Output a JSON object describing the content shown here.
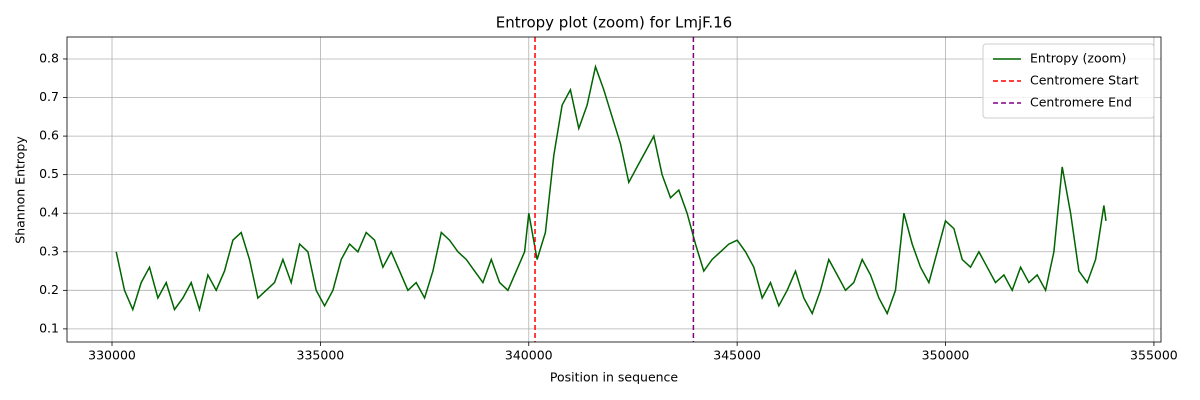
{
  "chart_data": {
    "type": "line",
    "title": "Entropy plot (zoom) for LmjF.16",
    "x_label": "Position in sequence",
    "y_label": "Shannon Entropy",
    "xlim": [
      328920,
      355170
    ],
    "ylim": [
      0.066,
      0.857
    ],
    "xticks": [
      330000,
      335000,
      340000,
      345000,
      350000,
      355000
    ],
    "yticks": [
      0.1,
      0.2,
      0.3,
      0.4,
      0.5,
      0.6,
      0.7,
      0.8
    ],
    "grid": true,
    "legend_loc": "upper right",
    "x": [
      330100,
      330300,
      330500,
      330700,
      330900,
      331100,
      331300,
      331500,
      331700,
      331900,
      332100,
      332300,
      332500,
      332700,
      332900,
      333100,
      333300,
      333500,
      333700,
      333900,
      334100,
      334300,
      334500,
      334700,
      334900,
      335100,
      335300,
      335500,
      335700,
      335900,
      336100,
      336300,
      336500,
      336700,
      336900,
      337100,
      337300,
      337500,
      337700,
      337900,
      338100,
      338300,
      338500,
      338700,
      338900,
      339100,
      339300,
      339500,
      339700,
      339900,
      340000,
      340200,
      340400,
      340600,
      340800,
      341000,
      341200,
      341400,
      341600,
      341800,
      342000,
      342200,
      342400,
      342600,
      342800,
      343000,
      343200,
      343400,
      343600,
      343800,
      344000,
      344200,
      344400,
      344600,
      344800,
      345000,
      345200,
      345400,
      345600,
      345800,
      346000,
      346200,
      346400,
      346600,
      346800,
      347000,
      347200,
      347400,
      347600,
      347800,
      348000,
      348200,
      348400,
      348600,
      348800,
      349000,
      349200,
      349400,
      349600,
      349800,
      350000,
      350200,
      350400,
      350600,
      350800,
      351000,
      351200,
      351400,
      351600,
      351800,
      352000,
      352200,
      352400,
      352600,
      352800,
      353000,
      353200,
      353400,
      353600,
      353800,
      353850
    ],
    "series": [
      {
        "name": "Entropy (zoom)",
        "color": "#006400",
        "values": [
          0.3,
          0.2,
          0.15,
          0.22,
          0.26,
          0.18,
          0.22,
          0.15,
          0.18,
          0.22,
          0.15,
          0.24,
          0.2,
          0.25,
          0.33,
          0.35,
          0.28,
          0.18,
          0.2,
          0.22,
          0.28,
          0.22,
          0.32,
          0.3,
          0.2,
          0.16,
          0.2,
          0.28,
          0.32,
          0.3,
          0.35,
          0.33,
          0.26,
          0.3,
          0.25,
          0.2,
          0.22,
          0.18,
          0.25,
          0.35,
          0.33,
          0.3,
          0.28,
          0.25,
          0.22,
          0.28,
          0.22,
          0.2,
          0.25,
          0.3,
          0.4,
          0.28,
          0.35,
          0.55,
          0.68,
          0.72,
          0.62,
          0.68,
          0.78,
          0.72,
          0.65,
          0.58,
          0.48,
          0.52,
          0.56,
          0.6,
          0.5,
          0.44,
          0.46,
          0.4,
          0.32,
          0.25,
          0.28,
          0.3,
          0.32,
          0.33,
          0.3,
          0.26,
          0.18,
          0.22,
          0.16,
          0.2,
          0.25,
          0.18,
          0.14,
          0.2,
          0.28,
          0.24,
          0.2,
          0.22,
          0.28,
          0.24,
          0.18,
          0.14,
          0.2,
          0.4,
          0.32,
          0.26,
          0.22,
          0.3,
          0.38,
          0.36,
          0.28,
          0.26,
          0.3,
          0.26,
          0.22,
          0.24,
          0.2,
          0.26,
          0.22,
          0.24,
          0.2,
          0.3,
          0.52,
          0.4,
          0.25,
          0.22,
          0.28,
          0.42,
          0.38
        ]
      }
    ],
    "vlines": [
      {
        "name": "Centromere Start",
        "x": 340150,
        "color": "#ff0000"
      },
      {
        "name": "Centromere End",
        "x": 343950,
        "color": "#800080"
      }
    ]
  }
}
